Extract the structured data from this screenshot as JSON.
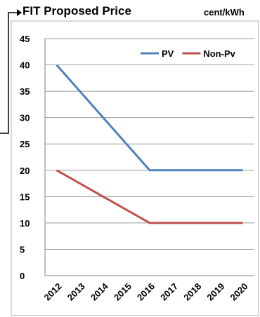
{
  "chart_data": {
    "type": "line",
    "title": "FIT Proposed Price",
    "unit": "cent/kWh",
    "categories": [
      "2012",
      "2013",
      "2014",
      "2015",
      "2016",
      "2017",
      "2018",
      "2019",
      "2020"
    ],
    "series": [
      {
        "name": "PV",
        "color": "#4f81bd",
        "points": [
          [
            2012,
            40
          ],
          [
            2016,
            20
          ],
          [
            2020,
            20
          ]
        ]
      },
      {
        "name": "Non-Pv",
        "color": "#c0504d",
        "points": [
          [
            2012,
            20
          ],
          [
            2016,
            10
          ],
          [
            2020,
            10
          ]
        ]
      }
    ],
    "ylim": [
      0,
      45
    ],
    "yticks": [
      0,
      5,
      10,
      15,
      20,
      25,
      30,
      35,
      40,
      45
    ],
    "grid": true,
    "legend_position": "top-right"
  }
}
